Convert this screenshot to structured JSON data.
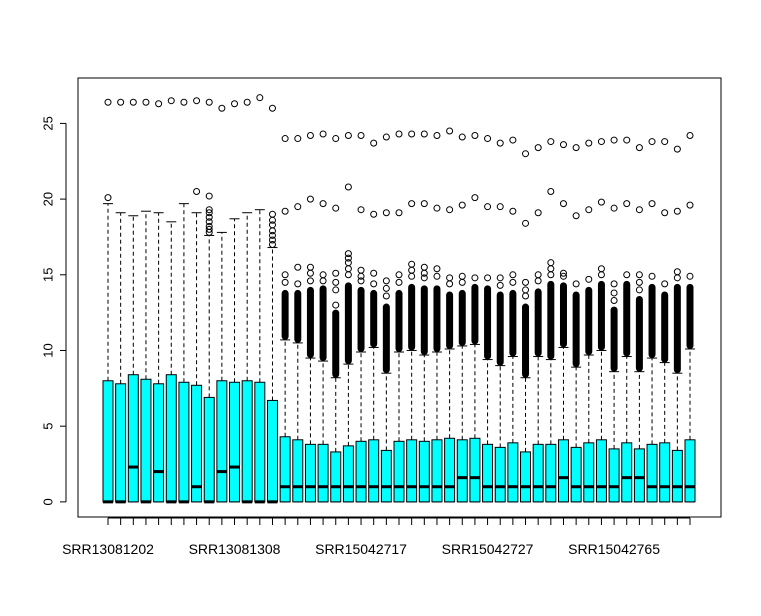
{
  "chart_data": {
    "type": "boxplot",
    "title": "",
    "xlabel": "",
    "ylabel": "",
    "ylim": [
      -1,
      28
    ],
    "y_ticks": [
      "0",
      "5",
      "10",
      "15",
      "20",
      "25"
    ],
    "y_tick_values": [
      0,
      5,
      10,
      15,
      20,
      25
    ],
    "x_tick_labels": [
      {
        "index": 0,
        "label": "SRR13081202"
      },
      {
        "index": 10,
        "label": "SRR13081308"
      },
      {
        "index": 20,
        "label": "SRR15042717"
      },
      {
        "index": 30,
        "label": "SRR15042727"
      },
      {
        "index": 40,
        "label": "SRR15042765"
      }
    ],
    "box_fill": "#00FFFF",
    "box_stroke": "#000000",
    "grid": false,
    "legend": "none",
    "boxes": [
      {
        "q1": 0,
        "median": 0,
        "q3": 8.0,
        "whisker_low": 0,
        "whisker_high": 19.7,
        "outliers": [
          20.1,
          26.4
        ]
      },
      {
        "q1": 0,
        "median": 0,
        "q3": 7.8,
        "whisker_low": 0,
        "whisker_high": 19.1,
        "outliers": [
          26.4
        ]
      },
      {
        "q1": 0,
        "median": 2.3,
        "q3": 8.4,
        "whisker_low": 0,
        "whisker_high": 18.9,
        "outliers": [
          26.4
        ]
      },
      {
        "q1": 0,
        "median": 0,
        "q3": 8.1,
        "whisker_low": 0,
        "whisker_high": 19.2,
        "outliers": [
          26.4
        ]
      },
      {
        "q1": 0,
        "median": 2.0,
        "q3": 7.8,
        "whisker_low": 0,
        "whisker_high": 19.1,
        "outliers": [
          26.3
        ]
      },
      {
        "q1": 0,
        "median": 0,
        "q3": 8.4,
        "whisker_low": 0,
        "whisker_high": 18.5,
        "outliers": [
          26.5
        ]
      },
      {
        "q1": 0,
        "median": 0,
        "q3": 7.9,
        "whisker_low": 0,
        "whisker_high": 19.7,
        "outliers": [
          26.4
        ]
      },
      {
        "q1": 0,
        "median": 1.0,
        "q3": 7.7,
        "whisker_low": 0,
        "whisker_high": 19.1,
        "outliers": [
          20.5,
          26.5
        ]
      },
      {
        "q1": 0,
        "median": 0,
        "q3": 6.9,
        "whisker_low": 0,
        "whisker_high": 17.6,
        "outliers": [
          17.8,
          18.0,
          18.2,
          18.5,
          18.8,
          19.1,
          19.3,
          20.2,
          26.4
        ]
      },
      {
        "q1": 0,
        "median": 2.0,
        "q3": 8.0,
        "whisker_low": 0,
        "whisker_high": 17.8,
        "outliers": [
          26.0
        ]
      },
      {
        "q1": 0,
        "median": 2.3,
        "q3": 7.9,
        "whisker_low": 0,
        "whisker_high": 18.7,
        "outliers": [
          26.3
        ]
      },
      {
        "q1": 0,
        "median": 0,
        "q3": 8.0,
        "whisker_low": 0,
        "whisker_high": 19.1,
        "outliers": [
          26.4
        ]
      },
      {
        "q1": 0,
        "median": 0,
        "q3": 7.9,
        "whisker_low": 0,
        "whisker_high": 19.3,
        "outliers": [
          26.7
        ]
      },
      {
        "q1": 0,
        "median": 0,
        "q3": 6.7,
        "whisker_low": 0,
        "whisker_high": 16.8,
        "outliers": [
          17.0,
          17.3,
          17.6,
          17.9,
          18.3,
          18.6,
          19.0,
          26.0
        ]
      },
      {
        "q1": 0,
        "median": 1.0,
        "q3": 4.3,
        "whisker_low": 0,
        "whisker_high": 10.7,
        "dense_top": 14.0,
        "outliers": [
          14.5,
          15.0,
          19.2,
          24.0
        ]
      },
      {
        "q1": 0,
        "median": 1.0,
        "q3": 4.1,
        "whisker_low": 0,
        "whisker_high": 10.5,
        "dense_top": 14.0,
        "outliers": [
          14.4,
          15.5,
          19.5,
          24.0
        ]
      },
      {
        "q1": 0,
        "median": 1.0,
        "q3": 3.8,
        "whisker_low": 0,
        "whisker_high": 9.5,
        "dense_top": 14.2,
        "outliers": [
          14.6,
          15.1,
          15.5,
          20.0,
          24.2
        ]
      },
      {
        "q1": 0,
        "median": 1.0,
        "q3": 3.8,
        "whisker_low": 0,
        "whisker_high": 9.3,
        "dense_top": 14.3,
        "outliers": [
          14.6,
          15.0,
          19.7,
          24.3
        ]
      },
      {
        "q1": 0,
        "median": 1.0,
        "q3": 3.3,
        "whisker_low": 0,
        "whisker_high": 8.2,
        "dense_top": 12.7,
        "outliers": [
          13.0,
          14.0,
          14.5,
          15.1,
          19.4,
          24.0
        ]
      },
      {
        "q1": 0,
        "median": 1.0,
        "q3": 3.7,
        "whisker_low": 0,
        "whisker_high": 9.1,
        "dense_top": 14.5,
        "outliers": [
          15.0,
          15.4,
          15.8,
          16.1,
          16.4,
          20.8,
          24.2
        ]
      },
      {
        "q1": 0,
        "median": 1.0,
        "q3": 4.0,
        "whisker_low": 0,
        "whisker_high": 9.9,
        "dense_top": 14.2,
        "outliers": [
          14.6,
          14.9,
          15.3,
          19.3,
          24.2
        ]
      },
      {
        "q1": 0,
        "median": 1.0,
        "q3": 4.1,
        "whisker_low": 0,
        "whisker_high": 10.2,
        "dense_top": 14.0,
        "outliers": [
          14.4,
          15.1,
          19.0,
          23.7
        ]
      },
      {
        "q1": 0,
        "median": 1.0,
        "q3": 3.4,
        "whisker_low": 0,
        "whisker_high": 8.5,
        "dense_top": 13.1,
        "outliers": [
          13.6,
          14.1,
          14.6,
          19.1,
          24.1
        ]
      },
      {
        "q1": 0,
        "median": 1.0,
        "q3": 4.0,
        "whisker_low": 0,
        "whisker_high": 9.9,
        "dense_top": 14.0,
        "outliers": [
          14.5,
          15.0,
          19.1,
          24.3
        ]
      },
      {
        "q1": 0,
        "median": 1.0,
        "q3": 4.1,
        "whisker_low": 0,
        "whisker_high": 10.0,
        "dense_top": 14.4,
        "outliers": [
          14.9,
          15.3,
          15.7,
          19.7,
          24.3
        ]
      },
      {
        "q1": 0,
        "median": 1.0,
        "q3": 4.0,
        "whisker_low": 0,
        "whisker_high": 9.7,
        "dense_top": 14.3,
        "outliers": [
          14.8,
          15.1,
          15.5,
          19.7,
          24.3
        ]
      },
      {
        "q1": 0,
        "median": 1.0,
        "q3": 4.1,
        "whisker_low": 0,
        "whisker_high": 9.9,
        "dense_top": 14.3,
        "outliers": [
          14.9,
          15.4,
          19.4,
          24.2
        ]
      },
      {
        "q1": 0,
        "median": 1.0,
        "q3": 4.2,
        "whisker_low": 0,
        "whisker_high": 10.1,
        "dense_top": 13.9,
        "outliers": [
          14.4,
          14.8,
          19.3,
          24.5
        ]
      },
      {
        "q1": 0,
        "median": 1.6,
        "q3": 4.1,
        "whisker_low": 0,
        "whisker_high": 10.3,
        "dense_top": 14.0,
        "outliers": [
          14.5,
          14.9,
          19.6,
          24.1
        ]
      },
      {
        "q1": 0,
        "median": 1.6,
        "q3": 4.2,
        "whisker_low": 0,
        "whisker_high": 10.4,
        "dense_top": 14.4,
        "outliers": [
          14.8,
          20.1,
          24.2
        ]
      },
      {
        "q1": 0,
        "median": 1.0,
        "q3": 3.8,
        "whisker_low": 0,
        "whisker_high": 9.4,
        "dense_top": 14.3,
        "outliers": [
          14.8,
          19.5,
          24.0
        ]
      },
      {
        "q1": 0,
        "median": 1.0,
        "q3": 3.6,
        "whisker_low": 0,
        "whisker_high": 9.0,
        "dense_top": 13.9,
        "outliers": [
          14.3,
          14.8,
          19.5,
          23.7
        ]
      },
      {
        "q1": 0,
        "median": 1.0,
        "q3": 3.9,
        "whisker_low": 0,
        "whisker_high": 9.6,
        "dense_top": 14.0,
        "outliers": [
          14.5,
          15.0,
          19.2,
          23.9
        ]
      },
      {
        "q1": 0,
        "median": 1.0,
        "q3": 3.3,
        "whisker_low": 0,
        "whisker_high": 8.2,
        "dense_top": 13.1,
        "outliers": [
          13.6,
          14.0,
          14.5,
          18.4,
          23.0
        ]
      },
      {
        "q1": 0,
        "median": 1.0,
        "q3": 3.8,
        "whisker_low": 0,
        "whisker_high": 9.6,
        "dense_top": 14.1,
        "outliers": [
          14.6,
          15.0,
          19.1,
          23.4
        ]
      },
      {
        "q1": 0,
        "median": 1.0,
        "q3": 3.8,
        "whisker_low": 0,
        "whisker_high": 9.4,
        "dense_top": 14.6,
        "outliers": [
          15.0,
          15.4,
          15.8,
          20.5,
          23.8
        ]
      },
      {
        "q1": 0,
        "median": 1.6,
        "q3": 4.1,
        "whisker_low": 0,
        "whisker_high": 10.2,
        "dense_top": 14.5,
        "outliers": [
          14.9,
          15.1,
          19.7,
          23.6
        ]
      },
      {
        "q1": 0,
        "median": 1.0,
        "q3": 3.6,
        "whisker_low": 0,
        "whisker_high": 8.9,
        "dense_top": 13.9,
        "outliers": [
          14.4,
          18.9,
          23.4
        ]
      },
      {
        "q1": 0,
        "median": 1.0,
        "q3": 3.9,
        "whisker_low": 0,
        "whisker_high": 9.7,
        "dense_top": 14.2,
        "outliers": [
          14.7,
          19.3,
          23.7
        ]
      },
      {
        "q1": 0,
        "median": 1.0,
        "q3": 4.1,
        "whisker_low": 0,
        "whisker_high": 10.0,
        "dense_top": 14.6,
        "outliers": [
          15.0,
          15.4,
          19.8,
          23.8
        ]
      },
      {
        "q1": 0,
        "median": 1.0,
        "q3": 3.5,
        "whisker_low": 0,
        "whisker_high": 8.6,
        "dense_top": 12.9,
        "outliers": [
          13.3,
          13.8,
          14.4,
          19.4,
          23.9
        ]
      },
      {
        "q1": 0,
        "median": 1.6,
        "q3": 3.9,
        "whisker_low": 0,
        "whisker_high": 9.6,
        "dense_top": 14.6,
        "outliers": [
          15.0,
          19.7,
          23.9
        ]
      },
      {
        "q1": 0,
        "median": 1.6,
        "q3": 3.5,
        "whisker_low": 0,
        "whisker_high": 8.6,
        "dense_top": 13.6,
        "outliers": [
          14.0,
          14.5,
          15.0,
          19.3,
          23.4
        ]
      },
      {
        "q1": 0,
        "median": 1.0,
        "q3": 3.8,
        "whisker_low": 0,
        "whisker_high": 9.5,
        "dense_top": 14.4,
        "outliers": [
          14.9,
          19.7,
          23.8
        ]
      },
      {
        "q1": 0,
        "median": 1.0,
        "q3": 3.9,
        "whisker_low": 0,
        "whisker_high": 9.2,
        "dense_top": 13.9,
        "outliers": [
          14.4,
          19.1,
          23.8
        ]
      },
      {
        "q1": 0,
        "median": 1.0,
        "q3": 3.4,
        "whisker_low": 0,
        "whisker_high": 8.5,
        "dense_top": 14.4,
        "outliers": [
          14.8,
          15.2,
          19.2,
          23.3
        ]
      },
      {
        "q1": 0,
        "median": 1.0,
        "q3": 4.1,
        "whisker_low": 0,
        "whisker_high": 10.1,
        "dense_top": 14.4,
        "outliers": [
          14.9,
          19.6,
          24.2
        ]
      }
    ]
  }
}
